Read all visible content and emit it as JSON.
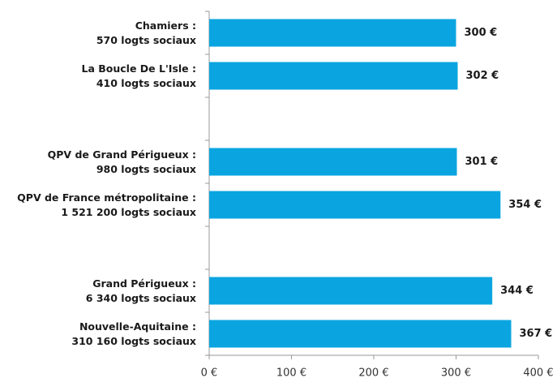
{
  "chart_data": {
    "type": "bar",
    "orientation": "horizontal",
    "categories": [
      "Chamiers :\n570 logts sociaux",
      "La Boucle De L'Isle :\n410 logts sociaux",
      null,
      "QPV de Grand Périgueux :\n980 logts sociaux",
      "QPV de France métropolitaine :\n1 521 200 logts sociaux",
      null,
      "Grand Périgueux :\n6 340 logts sociaux",
      "Nouvelle-Aquitaine :\n310 160 logts sociaux"
    ],
    "values": [
      300,
      302,
      null,
      301,
      354,
      null,
      344,
      367
    ],
    "value_labels": [
      "300 €",
      "302 €",
      null,
      "301 €",
      "354 €",
      null,
      "344 €",
      "367 €"
    ],
    "color": "#0aa5e0",
    "xlim": [
      0,
      400
    ],
    "xticks": [
      {
        "value": 0,
        "label": "0 €"
      },
      {
        "value": 100,
        "label": "100 €"
      },
      {
        "value": 200,
        "label": "200 €"
      },
      {
        "value": 300,
        "label": "300 €"
      },
      {
        "value": 400,
        "label": "400 €"
      }
    ]
  }
}
